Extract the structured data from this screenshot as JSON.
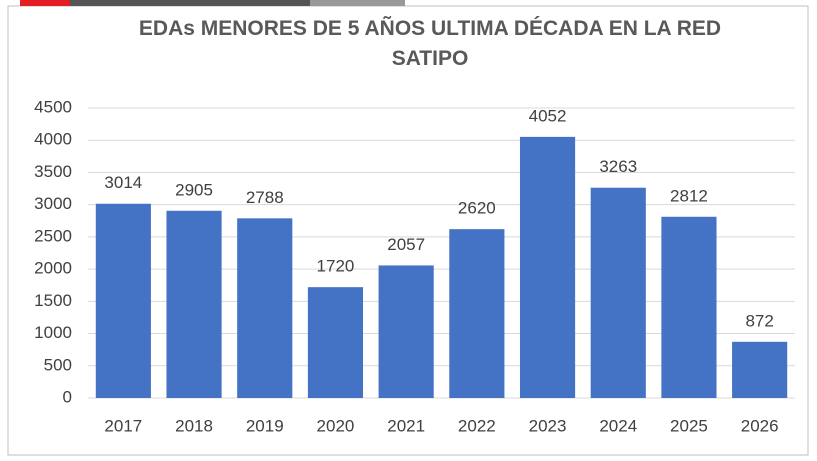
{
  "chart_data": {
    "type": "bar",
    "title": "EDAs MENORES DE 5 AÑOS ULTIMA DÉCADA EN LA RED SATIPO",
    "categories": [
      "2017",
      "2018",
      "2019",
      "2020",
      "2021",
      "2022",
      "2023",
      "2024",
      "2025",
      "2026"
    ],
    "values": [
      3014,
      2905,
      2788,
      1720,
      2057,
      2620,
      4052,
      3263,
      2812,
      872
    ],
    "color": "#4472c4",
    "ylim": [
      0,
      4500
    ],
    "yticks": [
      0,
      500,
      1000,
      1500,
      2000,
      2500,
      3000,
      3500,
      4000,
      4500
    ],
    "grid": true
  }
}
